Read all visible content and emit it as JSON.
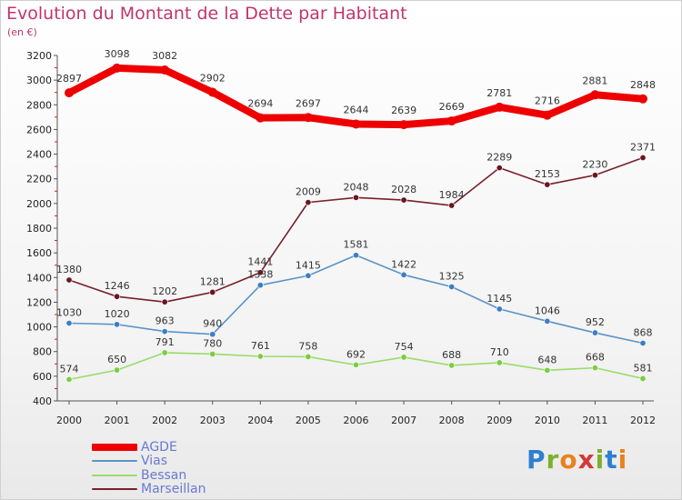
{
  "title": "Evolution du Montant de la Dette par Habitant",
  "subtitle": "(en €)",
  "brand": {
    "text": "Proxiti",
    "letter_colors": [
      "#2f7fd0",
      "#7bb02b",
      "#e9811c",
      "#d23a3a",
      "#7bb02b",
      "#2f7fd0",
      "#e9811c"
    ]
  },
  "chart_data": {
    "type": "line",
    "title": "Evolution du Montant de la Dette par Habitant",
    "subtitle": "(en €)",
    "xlabel": "",
    "ylabel": "",
    "ylim": [
      400,
      3200
    ],
    "ytick_step": 200,
    "yticks": [
      "400",
      "600",
      "800",
      "1000",
      "1200",
      "1400",
      "1600",
      "1800",
      "2000",
      "2200",
      "2400",
      "2600",
      "2800",
      "3000",
      "3200"
    ],
    "categories": [
      "2000",
      "2001",
      "2002",
      "2003",
      "2004",
      "2005",
      "2006",
      "2007",
      "2008",
      "2009",
      "2010",
      "2011",
      "2012"
    ],
    "grid": false,
    "legend_position": "bottom-left",
    "series": [
      {
        "name": "AGDE",
        "color": "#ee0000",
        "marker": "#ee0000",
        "values": [
          2897,
          3098,
          3082,
          2902,
          2694,
          2697,
          2644,
          2639,
          2669,
          2781,
          2716,
          2881,
          2848
        ]
      },
      {
        "name": "Vias",
        "color": "#5a93c8",
        "marker": "#3d7fc2",
        "values": [
          1030,
          1020,
          963,
          940,
          1338,
          1415,
          1581,
          1422,
          1325,
          1145,
          1046,
          952,
          868
        ]
      },
      {
        "name": "Bessan",
        "color": "#9bdb6b",
        "marker": "#7ccc44",
        "values": [
          574,
          650,
          791,
          780,
          761,
          758,
          692,
          754,
          688,
          710,
          648,
          668,
          581
        ]
      },
      {
        "name": "Marseillan",
        "color": "#7a1f2a",
        "marker": "#6a1620",
        "values": [
          1380,
          1246,
          1202,
          1281,
          1441,
          2009,
          2048,
          2028,
          1984,
          2289,
          2153,
          2230,
          2371
        ]
      }
    ]
  }
}
